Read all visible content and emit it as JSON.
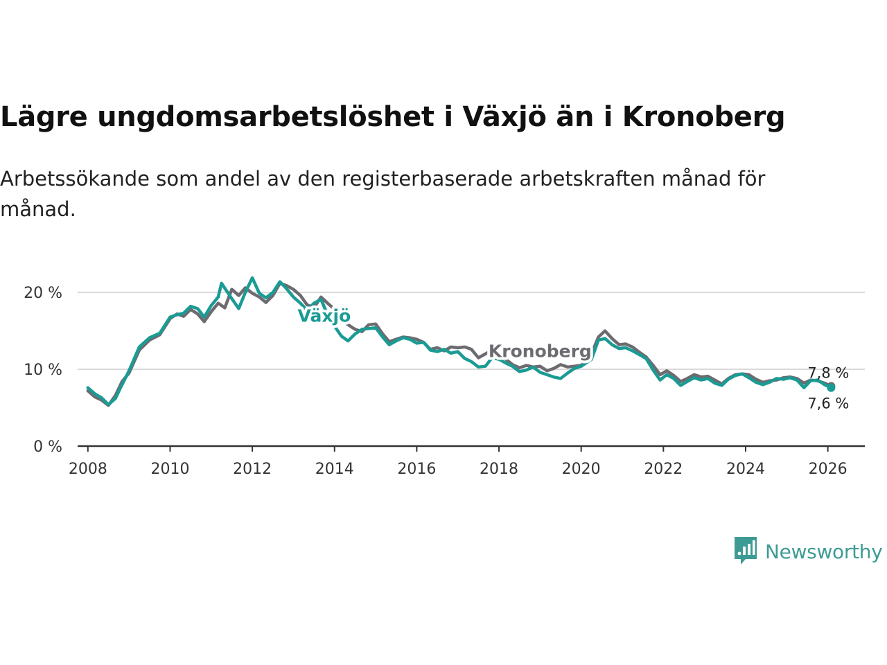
{
  "title": "Lägre ungdomsarbetslöshet i Växjö än i Kronoberg",
  "subtitle": "Arbetssökande som andel av den registerbaserade arbetskraften månad för månad.",
  "brand": "Newsworthy",
  "colors": {
    "vaxjo": "#1a9b94",
    "kronoberg": "#6d6b70",
    "grid": "#d9d9d9",
    "axis": "#333333",
    "brand": "#3d9b93"
  },
  "chart_data": {
    "type": "line",
    "title": "Lägre ungdomsarbetslöshet i Växjö än i Kronoberg",
    "xlabel": "",
    "ylabel": "",
    "xlim": [
      2007.75,
      2026.9
    ],
    "ylim": [
      0,
      22
    ],
    "y_ticks": [
      {
        "value": 0,
        "label": "0 %"
      },
      {
        "value": 10,
        "label": "10 %"
      },
      {
        "value": 20,
        "label": "20 %"
      }
    ],
    "x_ticks": [
      {
        "value": 2008,
        "label": "2008"
      },
      {
        "value": 2010,
        "label": "2010"
      },
      {
        "value": 2012,
        "label": "2012"
      },
      {
        "value": 2014,
        "label": "2014"
      },
      {
        "value": 2016,
        "label": "2016"
      },
      {
        "value": 2018,
        "label": "2018"
      },
      {
        "value": 2020,
        "label": "2020"
      },
      {
        "value": 2022,
        "label": "2022"
      },
      {
        "value": 2024,
        "label": "2024"
      },
      {
        "value": 2026,
        "label": "2026"
      }
    ],
    "series": [
      {
        "name": "Kronoberg",
        "label": "Kronoberg",
        "label_anchor": {
          "x": 2019.0,
          "y": 11.6
        },
        "end_label": "7,8 %",
        "points": [
          [
            2008.0,
            7.2
          ],
          [
            2008.17,
            6.4
          ],
          [
            2008.33,
            6.0
          ],
          [
            2008.5,
            5.3
          ],
          [
            2008.67,
            6.6
          ],
          [
            2008.83,
            8.4
          ],
          [
            2009.0,
            9.5
          ],
          [
            2009.25,
            12.5
          ],
          [
            2009.5,
            13.8
          ],
          [
            2009.75,
            14.5
          ],
          [
            2010.0,
            16.6
          ],
          [
            2010.17,
            17.2
          ],
          [
            2010.33,
            16.9
          ],
          [
            2010.5,
            17.8
          ],
          [
            2010.67,
            17.2
          ],
          [
            2010.83,
            16.2
          ],
          [
            2011.0,
            17.5
          ],
          [
            2011.17,
            18.6
          ],
          [
            2011.33,
            18.0
          ],
          [
            2011.5,
            20.4
          ],
          [
            2011.67,
            19.6
          ],
          [
            2011.83,
            20.6
          ],
          [
            2012.0,
            19.9
          ],
          [
            2012.17,
            19.4
          ],
          [
            2012.33,
            18.7
          ],
          [
            2012.5,
            19.6
          ],
          [
            2012.67,
            21.2
          ],
          [
            2012.83,
            20.9
          ],
          [
            2013.0,
            20.4
          ],
          [
            2013.17,
            19.6
          ],
          [
            2013.33,
            18.4
          ],
          [
            2013.5,
            18.0
          ],
          [
            2013.67,
            19.4
          ],
          [
            2013.83,
            18.6
          ],
          [
            2014.0,
            17.8
          ],
          [
            2014.17,
            16.5
          ],
          [
            2014.33,
            15.8
          ],
          [
            2014.5,
            15.2
          ],
          [
            2014.67,
            14.9
          ],
          [
            2014.83,
            15.8
          ],
          [
            2015.0,
            15.9
          ],
          [
            2015.17,
            14.6
          ],
          [
            2015.33,
            13.6
          ],
          [
            2015.5,
            13.9
          ],
          [
            2015.67,
            14.2
          ],
          [
            2015.83,
            14.1
          ],
          [
            2016.0,
            13.9
          ],
          [
            2016.17,
            13.5
          ],
          [
            2016.33,
            12.6
          ],
          [
            2016.5,
            12.8
          ],
          [
            2016.67,
            12.4
          ],
          [
            2016.83,
            12.9
          ],
          [
            2017.0,
            12.8
          ],
          [
            2017.17,
            12.9
          ],
          [
            2017.33,
            12.6
          ],
          [
            2017.5,
            11.5
          ],
          [
            2017.67,
            12.0
          ],
          [
            2017.83,
            12.5
          ],
          [
            2018.0,
            12.0
          ],
          [
            2018.17,
            11.3
          ],
          [
            2018.33,
            10.6
          ],
          [
            2018.5,
            10.2
          ],
          [
            2018.67,
            10.5
          ],
          [
            2018.83,
            10.3
          ],
          [
            2019.0,
            10.4
          ],
          [
            2019.17,
            9.8
          ],
          [
            2019.33,
            10.1
          ],
          [
            2019.5,
            10.6
          ],
          [
            2019.67,
            10.3
          ],
          [
            2020.0,
            10.5
          ],
          [
            2020.25,
            12.0
          ],
          [
            2020.42,
            14.2
          ],
          [
            2020.58,
            15.0
          ],
          [
            2020.75,
            14.0
          ],
          [
            2020.92,
            13.2
          ],
          [
            2021.08,
            13.3
          ],
          [
            2021.25,
            12.9
          ],
          [
            2021.42,
            12.2
          ],
          [
            2021.58,
            11.6
          ],
          [
            2021.75,
            10.5
          ],
          [
            2021.92,
            9.3
          ],
          [
            2022.08,
            9.8
          ],
          [
            2022.25,
            9.2
          ],
          [
            2022.42,
            8.4
          ],
          [
            2022.58,
            8.8
          ],
          [
            2022.75,
            9.3
          ],
          [
            2022.92,
            9.0
          ],
          [
            2023.08,
            9.1
          ],
          [
            2023.25,
            8.6
          ],
          [
            2023.42,
            8.1
          ],
          [
            2023.58,
            8.8
          ],
          [
            2023.75,
            9.3
          ],
          [
            2023.92,
            9.4
          ],
          [
            2024.08,
            9.3
          ],
          [
            2024.25,
            8.7
          ],
          [
            2024.42,
            8.3
          ],
          [
            2024.58,
            8.5
          ],
          [
            2024.75,
            8.6
          ],
          [
            2024.92,
            8.9
          ],
          [
            2025.08,
            9.0
          ],
          [
            2025.25,
            8.8
          ],
          [
            2025.42,
            8.2
          ],
          [
            2025.58,
            8.6
          ],
          [
            2025.75,
            8.5
          ],
          [
            2025.92,
            8.2
          ],
          [
            2026.08,
            7.8
          ]
        ]
      },
      {
        "name": "Växjö",
        "label": "Växjö",
        "label_anchor": {
          "x": 2013.75,
          "y": 16.2
        },
        "end_label": "7,6 %",
        "points": [
          [
            2008.0,
            7.6
          ],
          [
            2008.17,
            6.8
          ],
          [
            2008.33,
            6.3
          ],
          [
            2008.5,
            5.4
          ],
          [
            2008.67,
            6.2
          ],
          [
            2008.83,
            8.0
          ],
          [
            2009.0,
            9.8
          ],
          [
            2009.25,
            12.9
          ],
          [
            2009.5,
            14.1
          ],
          [
            2009.75,
            14.7
          ],
          [
            2010.0,
            16.8
          ],
          [
            2010.17,
            17.1
          ],
          [
            2010.33,
            17.3
          ],
          [
            2010.5,
            18.2
          ],
          [
            2010.67,
            17.9
          ],
          [
            2010.83,
            16.8
          ],
          [
            2011.0,
            18.3
          ],
          [
            2011.17,
            19.4
          ],
          [
            2011.25,
            21.2
          ],
          [
            2011.5,
            19.2
          ],
          [
            2011.67,
            17.9
          ],
          [
            2011.83,
            20.0
          ],
          [
            2012.0,
            21.9
          ],
          [
            2012.17,
            19.9
          ],
          [
            2012.33,
            19.3
          ],
          [
            2012.5,
            20.0
          ],
          [
            2012.67,
            21.4
          ],
          [
            2012.83,
            20.5
          ],
          [
            2013.0,
            19.4
          ],
          [
            2013.17,
            18.6
          ],
          [
            2013.33,
            17.7
          ],
          [
            2013.5,
            18.6
          ],
          [
            2013.67,
            19.1
          ],
          [
            2013.83,
            17.1
          ],
          [
            2014.0,
            15.6
          ],
          [
            2014.17,
            14.3
          ],
          [
            2014.33,
            13.7
          ],
          [
            2014.5,
            14.6
          ],
          [
            2014.67,
            15.2
          ],
          [
            2014.83,
            15.3
          ],
          [
            2015.0,
            15.4
          ],
          [
            2015.17,
            14.2
          ],
          [
            2015.33,
            13.2
          ],
          [
            2015.5,
            13.7
          ],
          [
            2015.67,
            14.1
          ],
          [
            2015.83,
            13.9
          ],
          [
            2016.0,
            13.4
          ],
          [
            2016.17,
            13.5
          ],
          [
            2016.33,
            12.5
          ],
          [
            2016.5,
            12.3
          ],
          [
            2016.67,
            12.6
          ],
          [
            2016.83,
            12.1
          ],
          [
            2017.0,
            12.3
          ],
          [
            2017.17,
            11.4
          ],
          [
            2017.33,
            11.0
          ],
          [
            2017.5,
            10.3
          ],
          [
            2017.67,
            10.4
          ],
          [
            2017.83,
            11.5
          ],
          [
            2018.0,
            11.3
          ],
          [
            2018.17,
            10.8
          ],
          [
            2018.33,
            10.4
          ],
          [
            2018.5,
            9.7
          ],
          [
            2018.67,
            9.9
          ],
          [
            2018.83,
            10.3
          ],
          [
            2019.0,
            9.6
          ],
          [
            2019.17,
            9.3
          ],
          [
            2019.33,
            9.0
          ],
          [
            2019.5,
            8.8
          ],
          [
            2019.67,
            9.5
          ],
          [
            2019.83,
            10.1
          ],
          [
            2020.0,
            10.4
          ],
          [
            2020.25,
            11.3
          ],
          [
            2020.42,
            13.8
          ],
          [
            2020.58,
            14.0
          ],
          [
            2020.75,
            13.2
          ],
          [
            2020.92,
            12.7
          ],
          [
            2021.08,
            12.8
          ],
          [
            2021.25,
            12.4
          ],
          [
            2021.42,
            11.9
          ],
          [
            2021.58,
            11.4
          ],
          [
            2021.75,
            9.9
          ],
          [
            2021.92,
            8.6
          ],
          [
            2022.08,
            9.3
          ],
          [
            2022.25,
            8.8
          ],
          [
            2022.42,
            7.9
          ],
          [
            2022.58,
            8.4
          ],
          [
            2022.75,
            8.9
          ],
          [
            2022.92,
            8.6
          ],
          [
            2023.08,
            8.8
          ],
          [
            2023.25,
            8.2
          ],
          [
            2023.42,
            7.9
          ],
          [
            2023.58,
            8.7
          ],
          [
            2023.75,
            9.2
          ],
          [
            2023.92,
            9.4
          ],
          [
            2024.08,
            8.9
          ],
          [
            2024.25,
            8.3
          ],
          [
            2024.42,
            8.0
          ],
          [
            2024.58,
            8.3
          ],
          [
            2024.75,
            8.8
          ],
          [
            2024.92,
            8.7
          ],
          [
            2025.08,
            8.9
          ],
          [
            2025.25,
            8.6
          ],
          [
            2025.42,
            7.6
          ],
          [
            2025.58,
            8.5
          ],
          [
            2025.75,
            8.6
          ],
          [
            2025.92,
            8.0
          ],
          [
            2026.08,
            7.6
          ]
        ]
      }
    ]
  }
}
